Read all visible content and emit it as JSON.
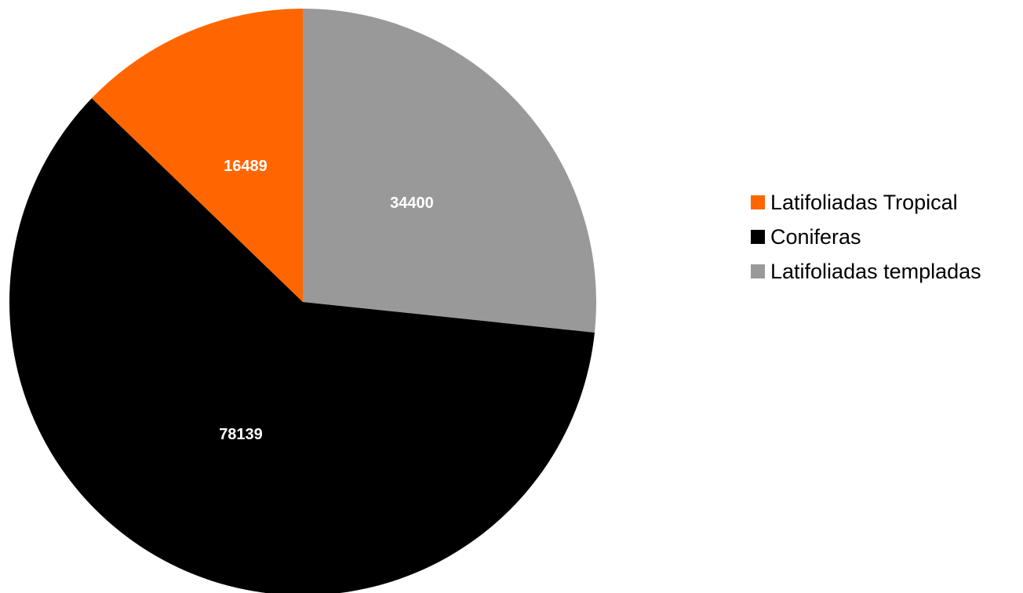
{
  "chart_data": {
    "type": "pie",
    "title": "",
    "slices": [
      {
        "label": "Latifoliadas templadas",
        "value": 34400,
        "data_label": "34400",
        "color": "#999999"
      },
      {
        "label": "Coniferas",
        "value": 78139,
        "data_label": "78139",
        "color": "#000000"
      },
      {
        "label": "Latifoliadas Tropical",
        "value": 16489,
        "data_label": "16489",
        "color": "#ff6600"
      }
    ],
    "legend": {
      "position": "right",
      "entries": [
        {
          "label": "Latifoliadas Tropical",
          "color": "#ff6600"
        },
        {
          "label": "Coniferas",
          "color": "#000000"
        },
        {
          "label": "Latifoliadas templadas",
          "color": "#999999"
        }
      ]
    }
  }
}
